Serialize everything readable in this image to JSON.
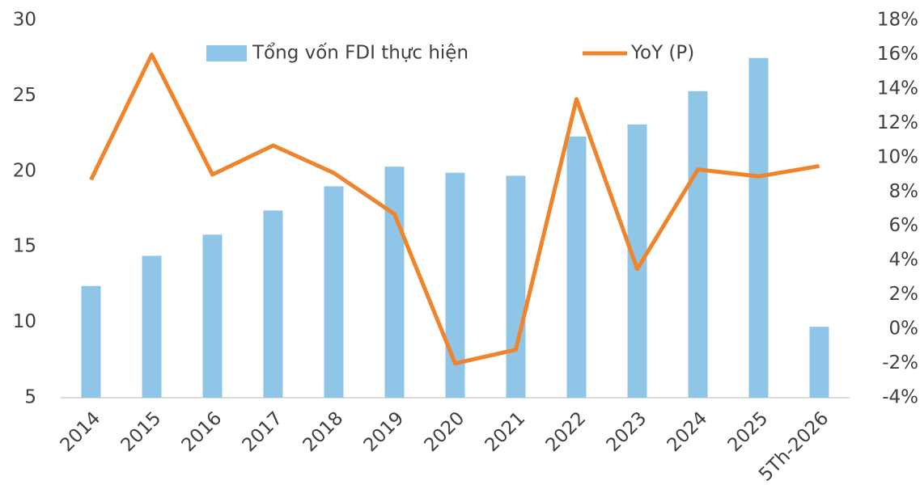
{
  "chart_data": {
    "type": "bar_line",
    "categories": [
      "2014",
      "2015",
      "2016",
      "2017",
      "2018",
      "2019",
      "2020",
      "2021",
      "2022",
      "2023",
      "2024",
      "2025",
      "5Th-2026"
    ],
    "series": [
      {
        "name": "Tổng vốn FDI thực hiện",
        "type": "bar",
        "color": "#8fc6e8",
        "values": [
          12.4,
          14.4,
          15.8,
          17.4,
          19.0,
          20.3,
          19.9,
          19.7,
          22.3,
          23.1,
          25.3,
          27.5,
          9.7
        ]
      },
      {
        "name": "YoY (P)",
        "type": "line",
        "axis": "y2",
        "color": "#f0842c",
        "values": [
          8.7,
          16.0,
          9.0,
          10.7,
          9.1,
          6.7,
          -2.0,
          -1.2,
          13.4,
          3.5,
          9.3,
          8.9,
          9.5
        ]
      }
    ],
    "ylim": [
      5,
      30
    ],
    "yticks": [
      5,
      10,
      15,
      20,
      25,
      30
    ],
    "y2lim": [
      -4,
      18
    ],
    "y2ticks": [
      {
        "value": -4,
        "label": "-4%"
      },
      {
        "value": -2,
        "label": "-2%"
      },
      {
        "value": 0,
        "label": "0%"
      },
      {
        "value": 2,
        "label": "2%"
      },
      {
        "value": 4,
        "label": "4%"
      },
      {
        "value": 6,
        "label": "6%"
      },
      {
        "value": 8,
        "label": "8%"
      },
      {
        "value": 10,
        "label": "10%"
      },
      {
        "value": 12,
        "label": "12%"
      },
      {
        "value": 14,
        "label": "14%"
      },
      {
        "value": 16,
        "label": "16%"
      },
      {
        "value": 18,
        "label": "18%"
      }
    ],
    "grid": false,
    "legend": "top"
  }
}
